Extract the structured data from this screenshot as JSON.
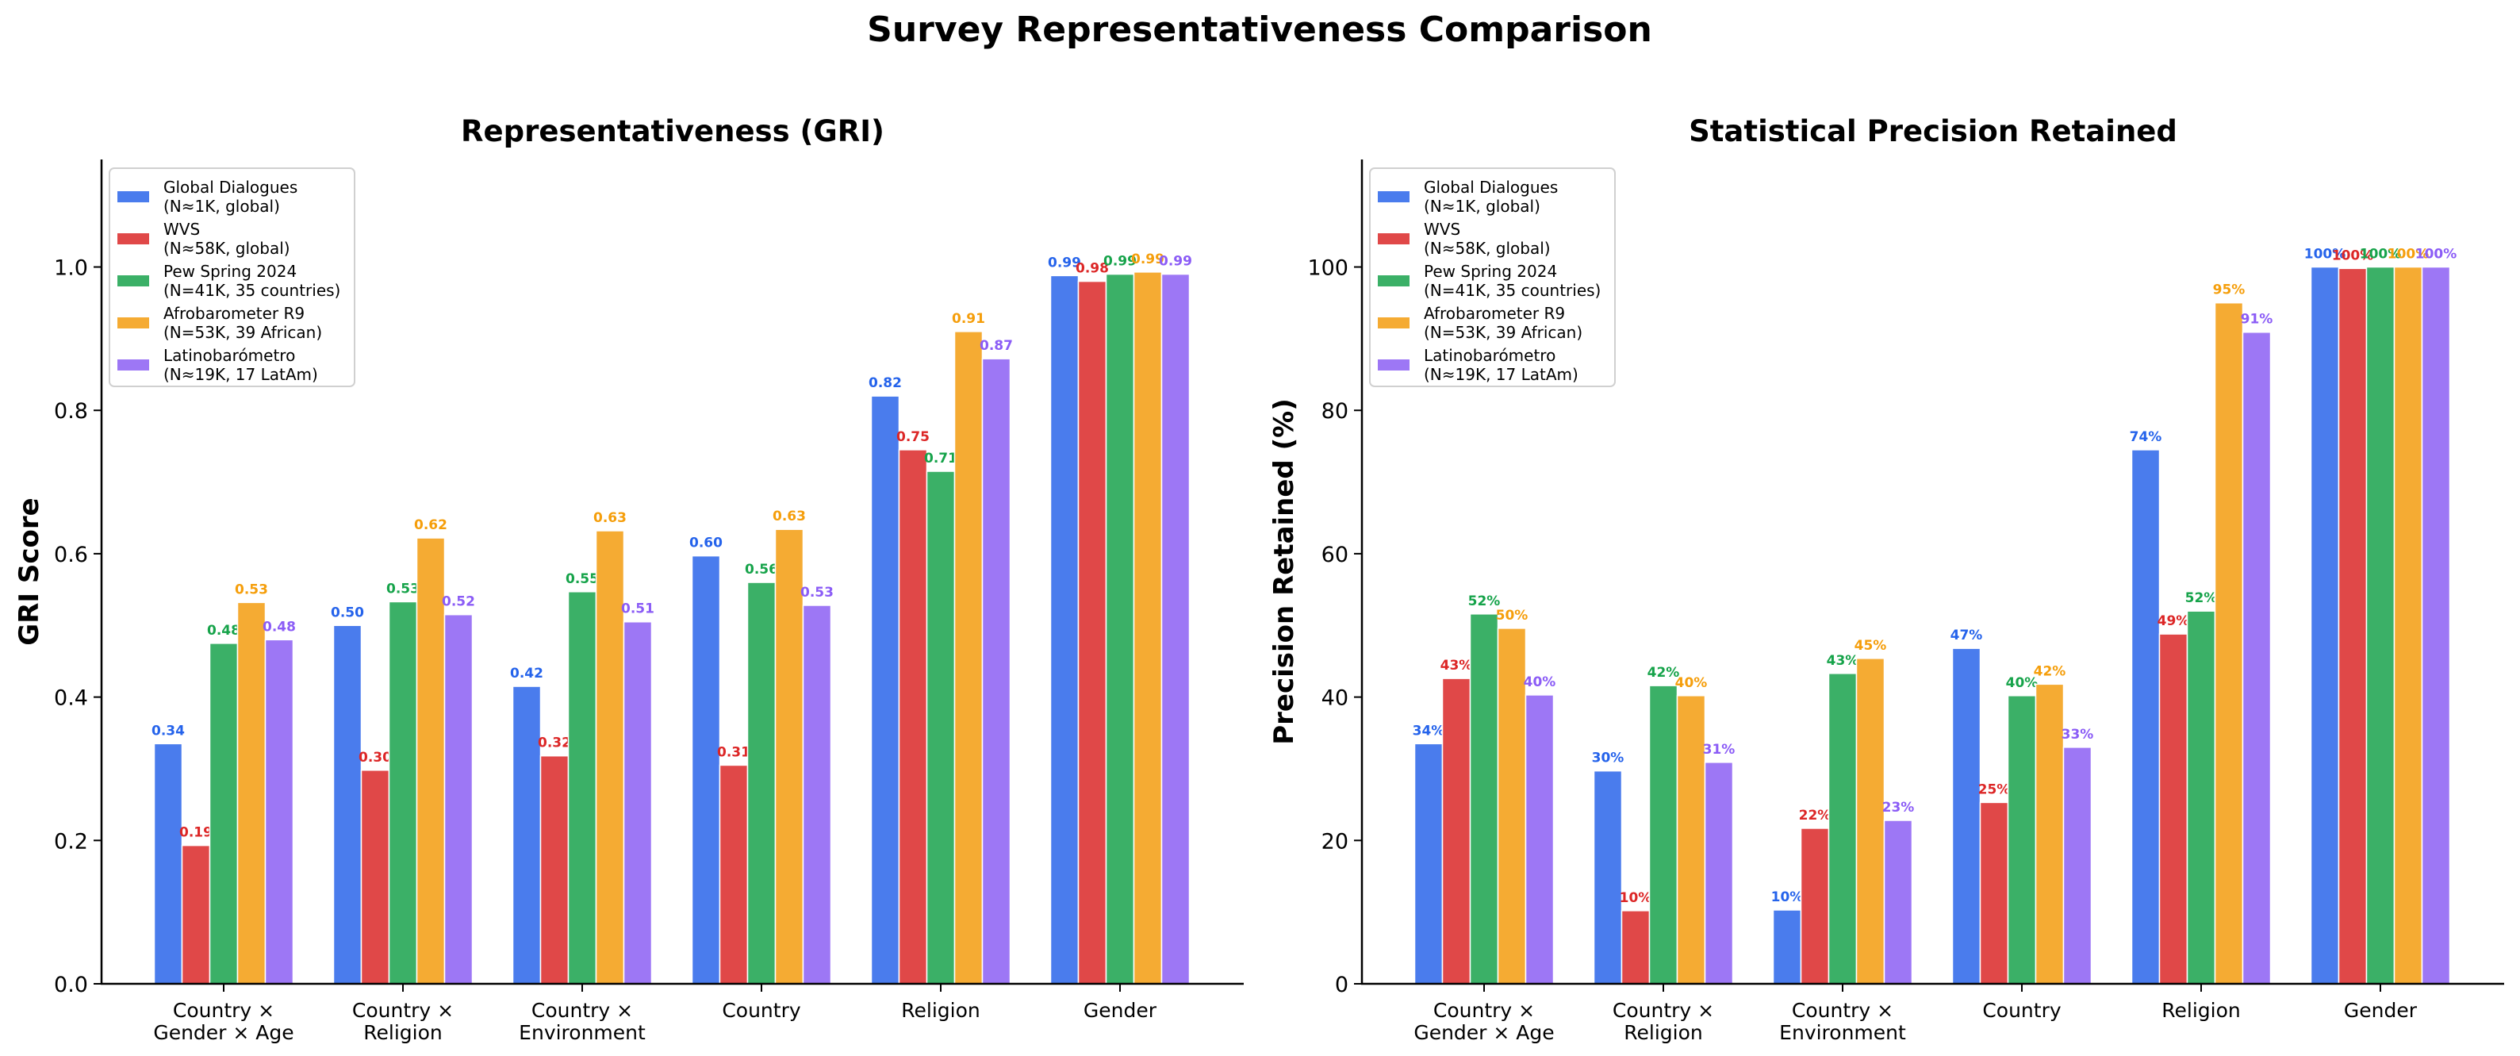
{
  "figure": {
    "title": "Survey Representativeness Comparison"
  },
  "legend": [
    {
      "line1": "Global Dialogues",
      "line2": "(N≈1K, global)",
      "color": "#4A7CED"
    },
    {
      "line1": "WVS",
      "line2": "(N≈58K, global)",
      "color": "#E04848"
    },
    {
      "line1": "Pew Spring 2024",
      "line2": "(N=41K, 35 countries)",
      "color": "#3BB067"
    },
    {
      "line1": "Afrobarometer R9",
      "line2": "(N=53K, 39 African)",
      "color": "#F5AB33"
    },
    {
      "line1": "Latinobarómetro",
      "line2": "(N≈19K, 17 LatAm)",
      "color": "#9D77F5"
    }
  ],
  "label_colors": [
    "#2563EB",
    "#DC2626",
    "#16A34A",
    "#F59E0B",
    "#8B5CF6"
  ],
  "chart_data": [
    {
      "type": "bar",
      "title": "Representativeness (GRI)",
      "xlabel": "",
      "ylabel": "GRI Score",
      "ylim": [
        0,
        1.15
      ],
      "yticks": [
        0.0,
        0.2,
        0.4,
        0.6,
        0.8,
        1.0
      ],
      "ytick_labels": [
        "0.0",
        "0.2",
        "0.4",
        "0.6",
        "0.8",
        "1.0"
      ],
      "grid": false,
      "legend_position": "top-left",
      "categories": [
        [
          "Country ×",
          "Gender × Age"
        ],
        [
          "Country ×",
          "Religion"
        ],
        [
          "Country ×",
          "Environment"
        ],
        [
          "Country"
        ],
        [
          "Religion"
        ],
        [
          "Gender"
        ]
      ],
      "series": [
        {
          "name": "Global Dialogues (N≈1K, global)",
          "values": [
            0.335,
            0.5,
            0.415,
            0.597,
            0.82,
            0.988
          ],
          "labels": [
            "0.34",
            "0.50",
            "0.42",
            "0.60",
            "0.82",
            "0.99"
          ]
        },
        {
          "name": "WVS (N≈58K, global)",
          "values": [
            0.193,
            0.298,
            0.318,
            0.305,
            0.745,
            0.98
          ],
          "labels": [
            "0.19",
            "0.30",
            "0.32",
            "0.31",
            "0.75",
            "0.98"
          ]
        },
        {
          "name": "Pew Spring 2024 (N=41K, 35 countries)",
          "values": [
            0.475,
            0.533,
            0.547,
            0.56,
            0.715,
            0.99
          ],
          "labels": [
            "0.48",
            "0.53",
            "0.55",
            "0.56",
            "0.71",
            "0.99"
          ]
        },
        {
          "name": "Afrobarometer R9 (N=53K, 39 African)",
          "values": [
            0.532,
            0.622,
            0.632,
            0.634,
            0.91,
            0.993
          ],
          "labels": [
            "0.53",
            "0.62",
            "0.63",
            "0.63",
            "0.91",
            "0.99"
          ]
        },
        {
          "name": "Latinobarómetro (N≈19K, 17 LatAm)",
          "values": [
            0.48,
            0.515,
            0.505,
            0.528,
            0.872,
            0.99
          ],
          "labels": [
            "0.48",
            "0.52",
            "0.51",
            "0.53",
            "0.87",
            "0.99"
          ]
        }
      ]
    },
    {
      "type": "bar",
      "title": "Statistical Precision Retained",
      "xlabel": "",
      "ylabel": "Precision Retained (%)",
      "ylim": [
        0,
        115
      ],
      "yticks": [
        0,
        20,
        40,
        60,
        80,
        100
      ],
      "ytick_labels": [
        "0",
        "20",
        "40",
        "60",
        "80",
        "100"
      ],
      "grid": false,
      "legend_position": "top-left",
      "categories": [
        [
          "Country ×",
          "Gender × Age"
        ],
        [
          "Country ×",
          "Religion"
        ],
        [
          "Country ×",
          "Environment"
        ],
        [
          "Country"
        ],
        [
          "Religion"
        ],
        [
          "Gender"
        ]
      ],
      "series": [
        {
          "name": "Global Dialogues (N≈1K, global)",
          "values": [
            33.5,
            29.7,
            10.3,
            46.8,
            74.5,
            100
          ],
          "labels": [
            "34%",
            "30%",
            "10%",
            "47%",
            "74%",
            "100%"
          ]
        },
        {
          "name": "WVS (N≈58K, global)",
          "values": [
            42.6,
            10.2,
            21.7,
            25.3,
            48.8,
            99.8
          ],
          "labels": [
            "43%",
            "10%",
            "22%",
            "25%",
            "49%",
            "100%"
          ]
        },
        {
          "name": "Pew Spring 2024 (N=41K, 35 countries)",
          "values": [
            51.6,
            41.6,
            43.3,
            40.2,
            52.0,
            100
          ],
          "labels": [
            "52%",
            "42%",
            "43%",
            "40%",
            "52%",
            "100%"
          ]
        },
        {
          "name": "Afrobarometer R9 (N=53K, 39 African)",
          "values": [
            49.6,
            40.2,
            45.4,
            41.8,
            95.0,
            100
          ],
          "labels": [
            "50%",
            "40%",
            "45%",
            "42%",
            "95%",
            "100%"
          ]
        },
        {
          "name": "Latinobarómetro (N≈19K, 17 LatAm)",
          "values": [
            40.3,
            30.9,
            22.8,
            33.0,
            90.9,
            100
          ],
          "labels": [
            "40%",
            "31%",
            "23%",
            "33%",
            "91%",
            "100%"
          ]
        }
      ]
    }
  ]
}
